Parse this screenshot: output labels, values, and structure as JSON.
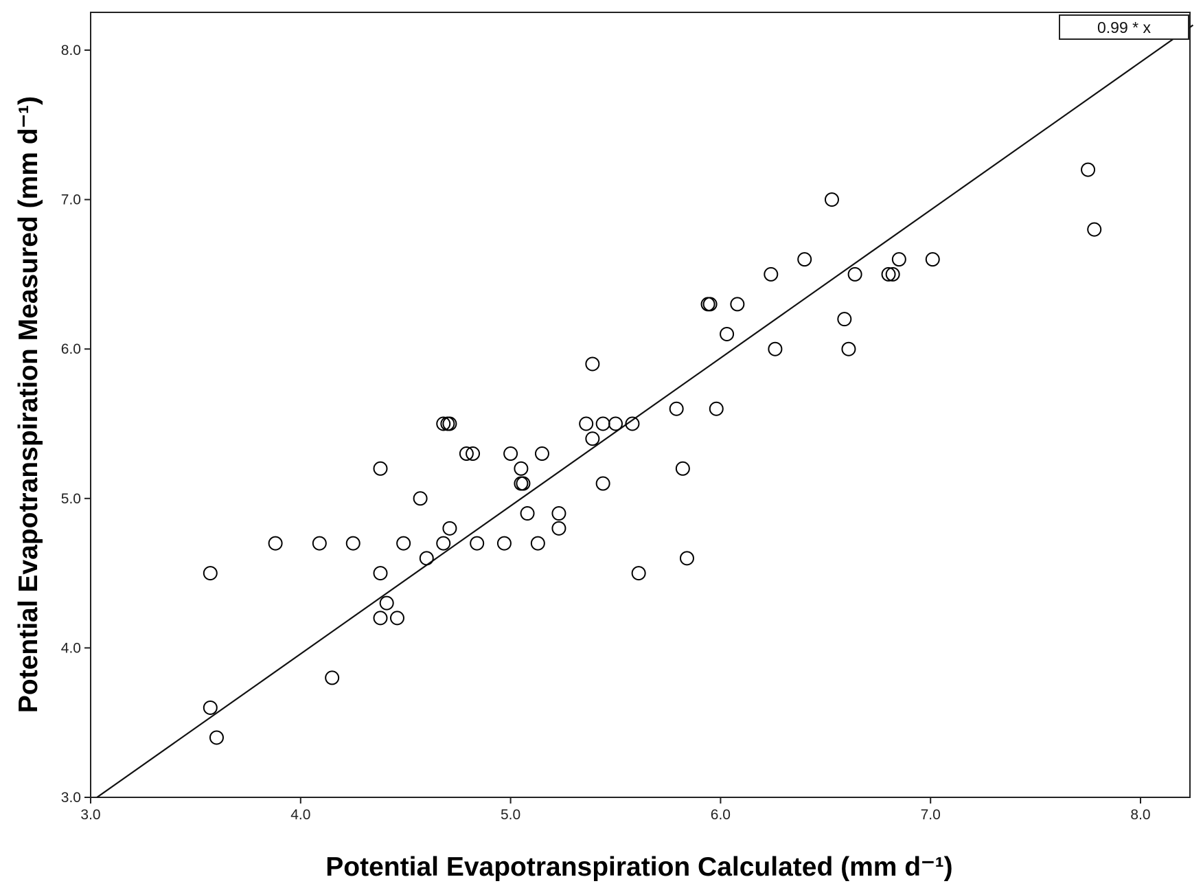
{
  "chart_data": {
    "type": "scatter",
    "title": "",
    "xlabel": "Potential Evapotranspiration Calculated (mm d⁻¹)",
    "ylabel": "Potential Evapotranspiration Measured (mm d⁻¹)",
    "xlim": [
      3.0,
      8.25
    ],
    "ylim": [
      3.0,
      8.25
    ],
    "xticks": [
      "3.0",
      "4.0",
      "5.0",
      "6.0",
      "7.0",
      "8.0"
    ],
    "yticks": [
      "3.0",
      "4.0",
      "5.0",
      "6.0",
      "7.0",
      "8.0"
    ],
    "grid": false,
    "legend": {
      "label": "0.99 * x",
      "position": "top-right"
    },
    "fit_line": {
      "slope": 0.99,
      "intercept": 0,
      "x_range": [
        3.03,
        8.25
      ]
    },
    "series": [
      {
        "name": "observations",
        "marker": "open-circle",
        "color": "#000000",
        "points": [
          [
            3.57,
            4.5
          ],
          [
            3.57,
            3.6
          ],
          [
            3.6,
            3.4
          ],
          [
            3.88,
            4.7
          ],
          [
            4.09,
            4.7
          ],
          [
            4.15,
            3.8
          ],
          [
            4.25,
            4.7
          ],
          [
            4.38,
            5.2
          ],
          [
            4.38,
            4.5
          ],
          [
            4.38,
            4.2
          ],
          [
            4.41,
            4.3
          ],
          [
            4.46,
            4.2
          ],
          [
            4.49,
            4.7
          ],
          [
            4.57,
            5.0
          ],
          [
            4.6,
            4.6
          ],
          [
            4.68,
            4.7
          ],
          [
            4.68,
            5.5
          ],
          [
            4.7,
            5.5
          ],
          [
            4.71,
            5.5
          ],
          [
            4.71,
            4.8
          ],
          [
            4.79,
            5.3
          ],
          [
            4.82,
            5.3
          ],
          [
            4.84,
            4.7
          ],
          [
            4.97,
            4.7
          ],
          [
            5.0,
            5.3
          ],
          [
            5.05,
            5.2
          ],
          [
            5.05,
            5.1
          ],
          [
            5.06,
            5.1
          ],
          [
            5.08,
            4.9
          ],
          [
            5.13,
            4.7
          ],
          [
            5.15,
            5.3
          ],
          [
            5.23,
            4.9
          ],
          [
            5.23,
            4.8
          ],
          [
            5.36,
            5.5
          ],
          [
            5.39,
            5.9
          ],
          [
            5.39,
            5.4
          ],
          [
            5.44,
            5.5
          ],
          [
            5.44,
            5.1
          ],
          [
            5.5,
            5.5
          ],
          [
            5.58,
            5.5
          ],
          [
            5.61,
            4.5
          ],
          [
            5.79,
            5.6
          ],
          [
            5.82,
            5.2
          ],
          [
            5.84,
            4.6
          ],
          [
            5.94,
            6.3
          ],
          [
            5.95,
            6.3
          ],
          [
            5.98,
            5.6
          ],
          [
            6.03,
            6.1
          ],
          [
            6.08,
            6.3
          ],
          [
            6.24,
            6.5
          ],
          [
            6.26,
            6.0
          ],
          [
            6.4,
            6.6
          ],
          [
            6.53,
            7.0
          ],
          [
            6.59,
            6.2
          ],
          [
            6.61,
            6.0
          ],
          [
            6.64,
            6.5
          ],
          [
            6.8,
            6.5
          ],
          [
            6.82,
            6.5
          ],
          [
            6.85,
            6.6
          ],
          [
            7.01,
            6.6
          ],
          [
            7.75,
            7.2
          ],
          [
            7.78,
            6.8
          ]
        ]
      }
    ]
  }
}
